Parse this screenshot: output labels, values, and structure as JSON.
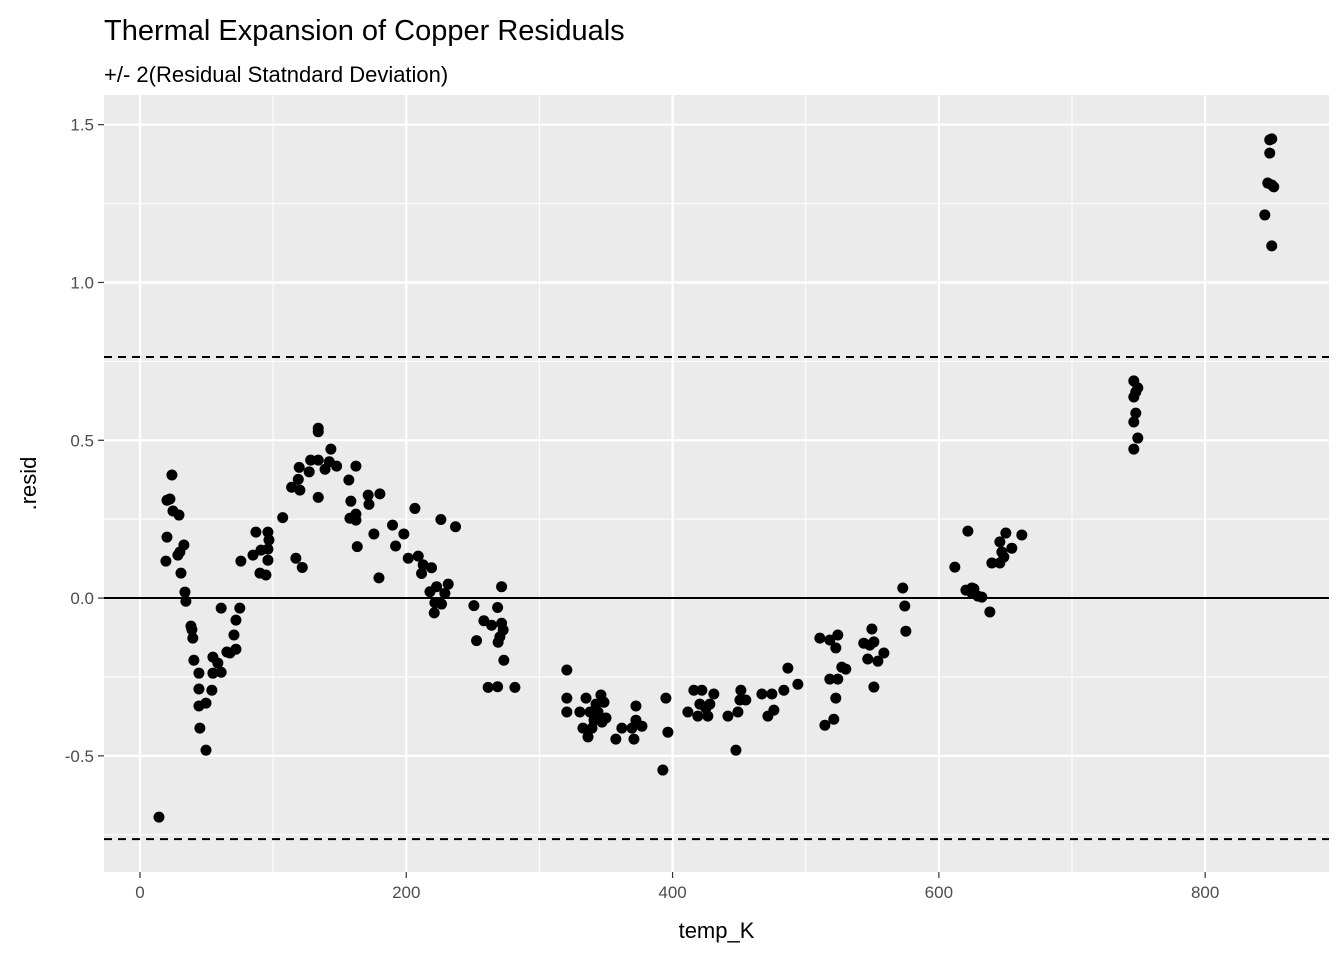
{
  "chart_data": {
    "type": "scatter",
    "title": "Thermal Expansion of Copper Residuals",
    "subtitle": "+/- 2(Residual Statndard Deviation)",
    "xlabel": "temp_K",
    "ylabel": ".resid",
    "xlim": [
      -27,
      893
    ],
    "ylim": [
      -0.868,
      1.594
    ],
    "x_ticks": [
      0,
      200,
      400,
      600,
      800
    ],
    "x_tick_labels": [
      "0",
      "200",
      "400",
      "600",
      "800"
    ],
    "y_ticks": [
      -0.5,
      0.0,
      0.5,
      1.0,
      1.5
    ],
    "y_tick_labels": [
      "-0.5",
      "0.0",
      "0.5",
      "1.0",
      "1.5"
    ],
    "grid": true,
    "hlines": [
      {
        "y": 0,
        "style": "solid"
      },
      {
        "y": 0.764,
        "style": "dashed"
      },
      {
        "y": -0.764,
        "style": "dashed"
      }
    ],
    "colors": {
      "panel": "#EBEBEB",
      "points": "#000000",
      "grid": "#FFFFFF"
    },
    "points": [
      [
        14.3,
        -0.694
      ],
      [
        19.5,
        0.117
      ],
      [
        20.3,
        0.193
      ],
      [
        20.3,
        0.31
      ],
      [
        22.5,
        0.314
      ],
      [
        24,
        0.39
      ],
      [
        24.8,
        0.276
      ],
      [
        29.3,
        0.263
      ],
      [
        28.5,
        0.136
      ],
      [
        30,
        0.146
      ],
      [
        30.8,
        0.079
      ],
      [
        33,
        0.168
      ],
      [
        33.8,
        0.019
      ],
      [
        34.5,
        -0.01
      ],
      [
        38.3,
        -0.089
      ],
      [
        39.7,
        -0.127
      ],
      [
        39,
        -0.1
      ],
      [
        40.5,
        -0.197
      ],
      [
        44.3,
        -0.288
      ],
      [
        44.3,
        -0.238
      ],
      [
        44.3,
        -0.342
      ],
      [
        45,
        -0.412
      ],
      [
        49.6,
        -0.482
      ],
      [
        49.6,
        -0.333
      ],
      [
        54,
        -0.292
      ],
      [
        54.8,
        -0.187
      ],
      [
        54.8,
        -0.238
      ],
      [
        58.5,
        -0.206
      ],
      [
        61,
        -0.032
      ],
      [
        61,
        -0.235
      ],
      [
        65.3,
        -0.171
      ],
      [
        67.6,
        -0.174
      ],
      [
        70.6,
        -0.117
      ],
      [
        72.1,
        -0.07
      ],
      [
        72.1,
        -0.162
      ],
      [
        75,
        -0.032
      ],
      [
        75.8,
        0.117
      ],
      [
        84.9,
        0.136
      ],
      [
        87.1,
        0.209
      ],
      [
        90.1,
        0.079
      ],
      [
        90.9,
        0.152
      ],
      [
        94.6,
        0.073
      ],
      [
        96.1,
        0.12
      ],
      [
        96.1,
        0.209
      ],
      [
        96.9,
        0.184
      ],
      [
        96.1,
        0.155
      ],
      [
        107.2,
        0.255
      ],
      [
        133.9,
        0.538
      ],
      [
        133.9,
        0.527
      ],
      [
        143.4,
        0.472
      ],
      [
        128.2,
        0.437
      ],
      [
        133.9,
        0.437
      ],
      [
        119.6,
        0.414
      ],
      [
        127.1,
        0.4
      ],
      [
        139,
        0.408
      ],
      [
        142.2,
        0.432
      ],
      [
        147.7,
        0.418
      ],
      [
        162.2,
        0.418
      ],
      [
        118.9,
        0.376
      ],
      [
        113.9,
        0.351
      ],
      [
        120.1,
        0.342
      ],
      [
        133.9,
        0.319
      ],
      [
        156.9,
        0.374
      ],
      [
        158.4,
        0.307
      ],
      [
        171.4,
        0.326
      ],
      [
        172,
        0.297
      ],
      [
        180.2,
        0.33
      ],
      [
        157.7,
        0.253
      ],
      [
        162.2,
        0.266
      ],
      [
        162.2,
        0.247
      ],
      [
        117.1,
        0.126
      ],
      [
        121.9,
        0.097
      ],
      [
        163.2,
        0.163
      ],
      [
        175.7,
        0.203
      ],
      [
        179.5,
        0.064
      ],
      [
        189.7,
        0.231
      ],
      [
        192,
        0.165
      ],
      [
        198.2,
        0.203
      ],
      [
        206.5,
        0.284
      ],
      [
        201.5,
        0.126
      ],
      [
        209,
        0.133
      ],
      [
        212.7,
        0.105
      ],
      [
        211.5,
        0.078
      ],
      [
        219,
        0.096
      ],
      [
        226,
        0.249
      ],
      [
        237,
        0.226
      ],
      [
        217.8,
        0.02
      ],
      [
        222.8,
        0.036
      ],
      [
        231.5,
        0.044
      ],
      [
        229,
        0.015
      ],
      [
        221.5,
        -0.015
      ],
      [
        226.5,
        -0.019
      ],
      [
        221,
        -0.047
      ],
      [
        271.6,
        0.036
      ],
      [
        250.8,
        -0.024
      ],
      [
        268.6,
        -0.03
      ],
      [
        258.3,
        -0.072
      ],
      [
        264.1,
        -0.086
      ],
      [
        271.6,
        -0.08
      ],
      [
        272.8,
        -0.101
      ],
      [
        270.3,
        -0.123
      ],
      [
        269,
        -0.14
      ],
      [
        252.8,
        -0.135
      ],
      [
        273.3,
        -0.197
      ],
      [
        261.5,
        -0.283
      ],
      [
        268.6,
        -0.281
      ],
      [
        281.6,
        -0.283
      ],
      [
        320.6,
        -0.228
      ],
      [
        320.6,
        -0.317
      ],
      [
        320.6,
        -0.361
      ],
      [
        330.4,
        -0.361
      ],
      [
        332.7,
        -0.412
      ],
      [
        335,
        -0.317
      ],
      [
        336.5,
        -0.44
      ],
      [
        338,
        -0.361
      ],
      [
        339.5,
        -0.412
      ],
      [
        341,
        -0.387
      ],
      [
        342.5,
        -0.336
      ],
      [
        344,
        -0.361
      ],
      [
        346.2,
        -0.307
      ],
      [
        347,
        -0.393
      ],
      [
        348.5,
        -0.33
      ],
      [
        350,
        -0.38
      ],
      [
        357.4,
        -0.447
      ],
      [
        361.9,
        -0.412
      ],
      [
        369.5,
        -0.412
      ],
      [
        371,
        -0.447
      ],
      [
        372.5,
        -0.387
      ],
      [
        372.5,
        -0.342
      ],
      [
        377,
        -0.406
      ],
      [
        392.7,
        -0.545
      ],
      [
        395,
        -0.317
      ],
      [
        396.5,
        -0.425
      ],
      [
        411.5,
        -0.361
      ],
      [
        416,
        -0.292
      ],
      [
        419,
        -0.374
      ],
      [
        420.5,
        -0.336
      ],
      [
        422,
        -0.292
      ],
      [
        425,
        -0.349
      ],
      [
        426.5,
        -0.374
      ],
      [
        428,
        -0.336
      ],
      [
        431,
        -0.304
      ],
      [
        441.6,
        -0.374
      ],
      [
        447.6,
        -0.482
      ],
      [
        449.1,
        -0.361
      ],
      [
        450.6,
        -0.323
      ],
      [
        451.3,
        -0.292
      ],
      [
        455,
        -0.323
      ],
      [
        467.1,
        -0.304
      ],
      [
        471.6,
        -0.374
      ],
      [
        474.6,
        -0.304
      ],
      [
        476.1,
        -0.355
      ],
      [
        483.6,
        -0.292
      ],
      [
        486.6,
        -0.222
      ],
      [
        494.1,
        -0.273
      ],
      [
        510.6,
        -0.127
      ],
      [
        514.4,
        -0.403
      ],
      [
        518.1,
        -0.133
      ],
      [
        518.1,
        -0.257
      ],
      [
        521.1,
        -0.384
      ],
      [
        522.6,
        -0.158
      ],
      [
        522.6,
        -0.317
      ],
      [
        524.1,
        -0.117
      ],
      [
        524.1,
        -0.257
      ],
      [
        527.1,
        -0.219
      ],
      [
        530.1,
        -0.225
      ],
      [
        543.6,
        -0.143
      ],
      [
        546.6,
        -0.193
      ],
      [
        548.1,
        -0.149
      ],
      [
        549.7,
        -0.098
      ],
      [
        551.2,
        -0.139
      ],
      [
        551.2,
        -0.282
      ],
      [
        554.2,
        -0.2
      ],
      [
        558.7,
        -0.174
      ],
      [
        572.9,
        0.032
      ],
      [
        574.4,
        -0.025
      ],
      [
        575.2,
        -0.105
      ],
      [
        612,
        0.098
      ],
      [
        620.3,
        0.025
      ],
      [
        621.8,
        0.212
      ],
      [
        624.8,
        0.032
      ],
      [
        624.8,
        0.016
      ],
      [
        626.3,
        0.029
      ],
      [
        629.3,
        0.006
      ],
      [
        632.3,
        0.003
      ],
      [
        638.3,
        -0.044
      ],
      [
        639.8,
        0.111
      ],
      [
        645.8,
        0.111
      ],
      [
        645.8,
        0.178
      ],
      [
        647.3,
        0.146
      ],
      [
        648.8,
        0.13
      ],
      [
        650.3,
        0.206
      ],
      [
        654.8,
        0.158
      ],
      [
        662.3,
        0.2
      ],
      [
        746.4,
        0.688
      ],
      [
        746.4,
        0.637
      ],
      [
        746.4,
        0.558
      ],
      [
        746.4,
        0.472
      ],
      [
        747.9,
        0.653
      ],
      [
        747.9,
        0.586
      ],
      [
        749.4,
        0.666
      ],
      [
        749.4,
        0.507
      ],
      [
        844.8,
        1.214
      ],
      [
        847,
        1.315
      ],
      [
        848.5,
        1.41
      ],
      [
        848.5,
        1.452
      ],
      [
        850,
        1.309
      ],
      [
        850,
        1.455
      ],
      [
        850,
        1.116
      ],
      [
        851.5,
        1.303
      ]
    ]
  }
}
